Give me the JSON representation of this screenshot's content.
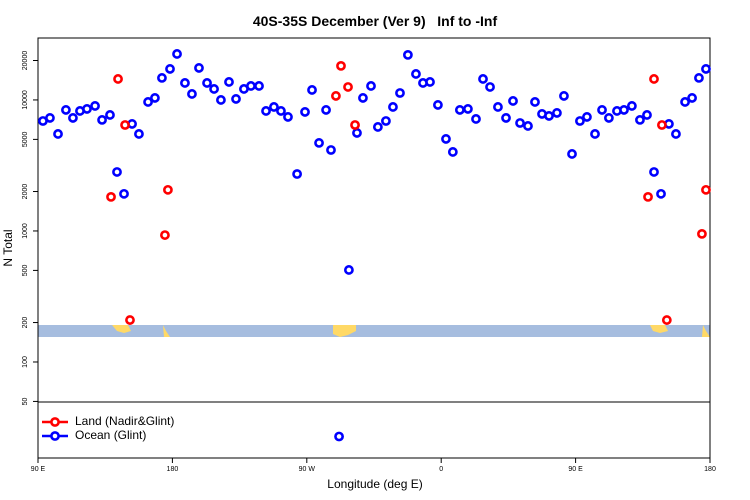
{
  "chart_data": {
    "type": "scatter",
    "title": "40S-35S December (Ver 9)   Inf to -Inf",
    "x_label": "Longitude (deg E)",
    "y_label": "N Total",
    "log_y": true,
    "legend": "lower left",
    "xlim": [
      90,
      540
    ],
    "xticks": [
      {
        "value": 90,
        "label": "90 E"
      },
      180,
      {
        "value": 270,
        "label": "90 W"
      },
      {
        "value": 360,
        "label": "0"
      },
      {
        "value": 450,
        "label": "90 E"
      },
      {
        "value": 540,
        "label": "180"
      }
    ],
    "ylim": [
      18.5,
      29700
    ],
    "yticks": [
      50,
      100,
      200,
      500,
      1000,
      2000,
      5000,
      10000,
      20000
    ],
    "series": [
      {
        "name": "Land (Nadir&Glint)",
        "color": "#ff0000",
        "x": [
          138.9,
          143.6,
          148.3,
          151.6,
          175,
          177,
          289.5,
          292.9,
          297.6,
          302.3,
          498.5,
          502.5,
          507.8,
          511.1,
          534.6,
          537.3
        ],
        "values": [
          1820,
          14460,
          6440,
          209,
          930,
          2060,
          10730,
          18190,
          12560,
          6440,
          1820,
          14460,
          6440,
          209,
          950,
          2060
        ]
      },
      {
        "name": "Ocean (Glint)",
        "color": "#0000ff",
        "x": [
          93.3,
          98,
          103.4,
          108.7,
          113.4,
          118.1,
          122.8,
          128.2,
          132.9,
          138.2,
          142.9,
          147.6,
          153,
          157.6,
          163.7,
          168.3,
          173,
          178.4,
          183.1,
          188.4,
          193.1,
          197.8,
          203.2,
          207.9,
          212.5,
          217.9,
          222.6,
          227.9,
          232.6,
          238,
          242.7,
          248,
          252.7,
          257.4,
          263.5,
          268.8,
          273.5,
          278.2,
          282.9,
          286.2,
          291.6,
          298.2,
          303.6,
          307.6,
          313,
          317.6,
          323,
          327.7,
          332.4,
          337.7,
          343.1,
          347.8,
          352.5,
          357.8,
          363.2,
          367.8,
          372.5,
          377.9,
          383.3,
          388,
          392.7,
          398,
          403.4,
          408.1,
          412.8,
          418.1,
          422.8,
          427.5,
          432.2,
          437.5,
          442.2,
          447.6,
          452.9,
          457.6,
          463,
          467.7,
          472.3,
          477.7,
          482.4,
          487.7,
          493.1,
          497.8,
          502.5,
          507.2,
          512.5,
          517.2,
          523.3,
          528,
          532.6,
          537.3
        ],
        "values": [
          6910,
          7290,
          5500,
          8390,
          7290,
          8240,
          8540,
          9000,
          7040,
          7680,
          2820,
          1920,
          6560,
          5500,
          9654,
          10360,
          14730,
          17250,
          22440,
          13480,
          11110,
          17550,
          13480,
          12130,
          10000,
          13720,
          10180,
          12130,
          12790,
          12790,
          8240,
          8840,
          8240,
          7420,
          2720,
          8100,
          11920,
          4700,
          8390,
          4150,
          27,
          504,
          5600,
          10360,
          12790,
          6220,
          6910,
          8840,
          11300,
          22070,
          15790,
          13480,
          13720,
          9160,
          5040,
          4010,
          8390,
          8540,
          7160,
          14460,
          12560,
          8840,
          7290,
          9826,
          6670,
          6330,
          9654,
          7820,
          7550,
          7960,
          10730,
          3870,
          6910,
          7420,
          5500,
          8390,
          7290,
          8240,
          8390,
          9000,
          7040,
          7680,
          2820,
          1920,
          6560,
          5500,
          9654,
          10360,
          14730,
          17250
        ]
      }
    ]
  }
}
